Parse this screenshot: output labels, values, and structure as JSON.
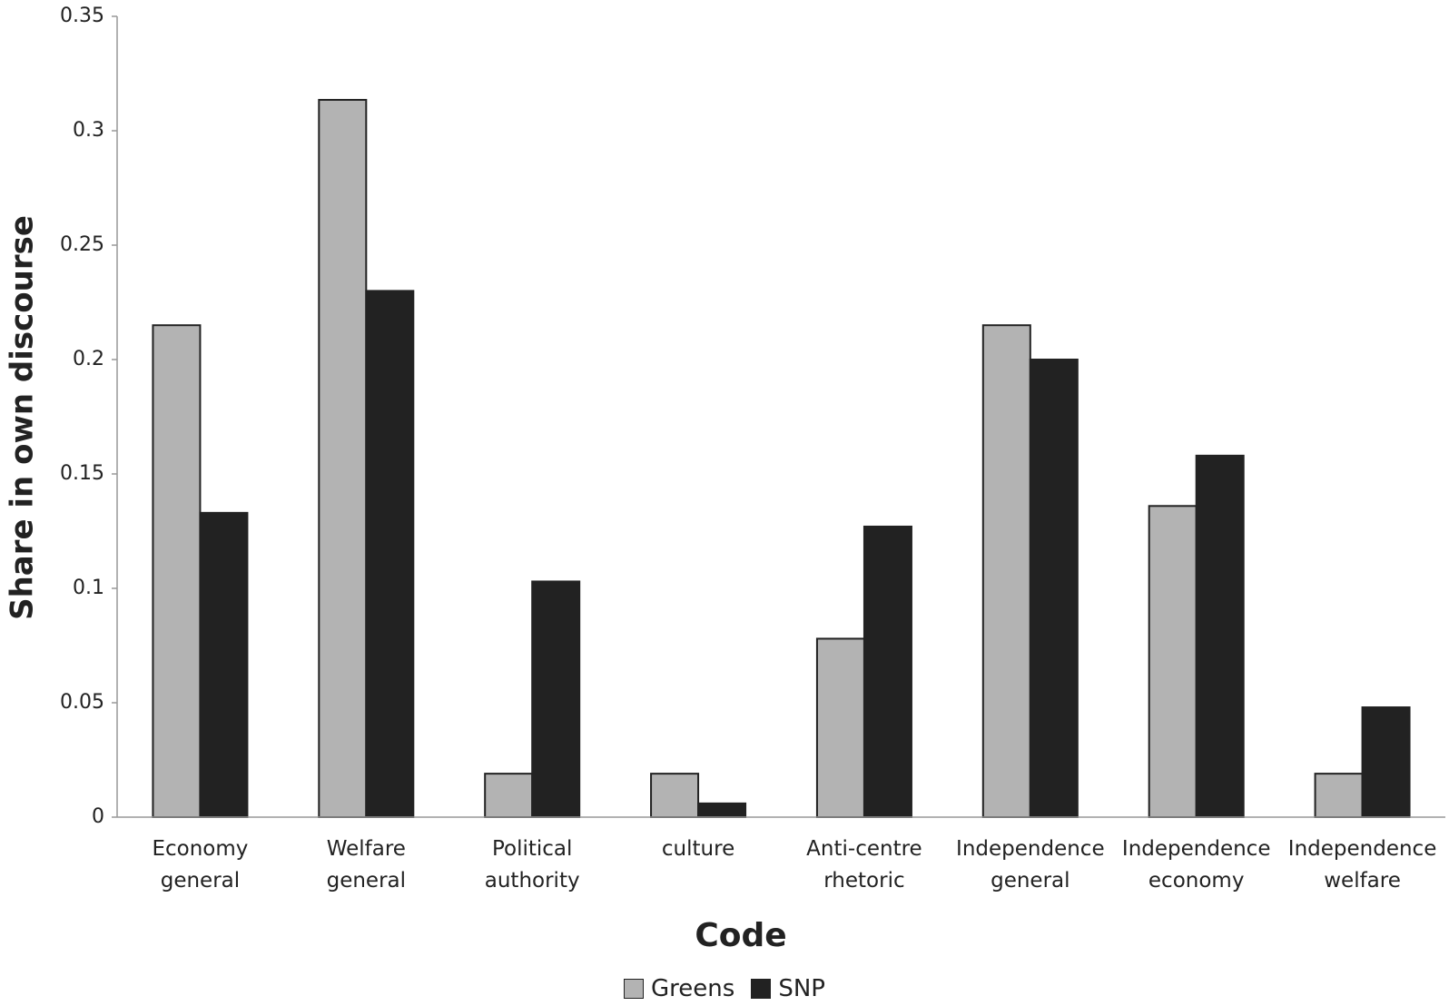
{
  "chart_data": {
    "type": "bar",
    "y_label": "Share in own discourse",
    "x_label": "Code",
    "categories": [
      "Economy general",
      "Welfare general",
      "Political authority",
      "culture",
      "Anti-centre rhetoric",
      "Independence general",
      "Independence economy",
      "Independence welfare"
    ],
    "series": [
      {
        "name": "Greens",
        "color": "#b3b3b3",
        "values": [
          0.215,
          0.3135,
          0.019,
          0.019,
          0.078,
          0.215,
          0.136,
          0.019
        ]
      },
      {
        "name": "SNP",
        "color": "#222222",
        "values": [
          0.133,
          0.23,
          0.103,
          0.006,
          0.127,
          0.2,
          0.158,
          0.048
        ]
      }
    ],
    "ylim": [
      0,
      0.35
    ],
    "yticks": [
      0,
      0.05,
      0.1,
      0.15,
      0.2,
      0.25,
      0.3,
      0.35
    ],
    "grid": false,
    "legend": "bottom"
  }
}
